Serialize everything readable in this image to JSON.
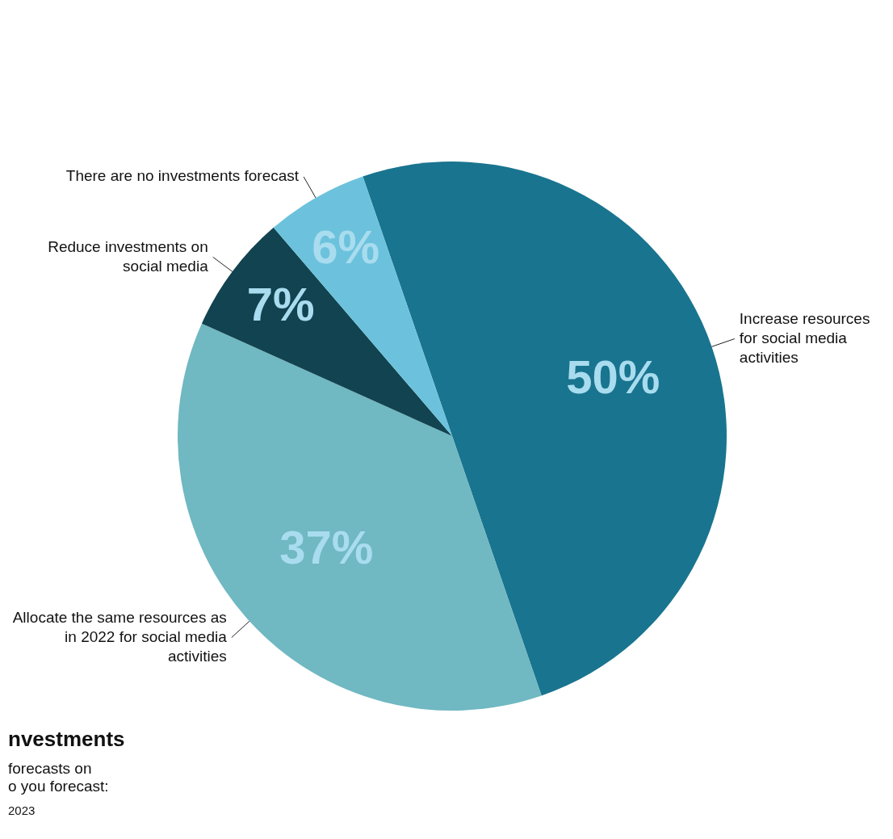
{
  "chart_data": {
    "type": "pie",
    "title": "nvestments",
    "annotations": [
      "forecasts on",
      "o you forecast:",
      "2023"
    ],
    "categories": [
      "Increase resources for social media activities",
      "Allocate the same resources as in 2022 for social media activities",
      "Reduce investments on social media",
      "There are no investments forecast"
    ],
    "values": [
      50,
      37,
      7,
      6
    ],
    "colors": [
      "#19748f",
      "#70b8c2",
      "#114350",
      "#6cc2dc"
    ],
    "value_labels": [
      "50%",
      "37%",
      "7%",
      "6%"
    ],
    "legend": false
  }
}
